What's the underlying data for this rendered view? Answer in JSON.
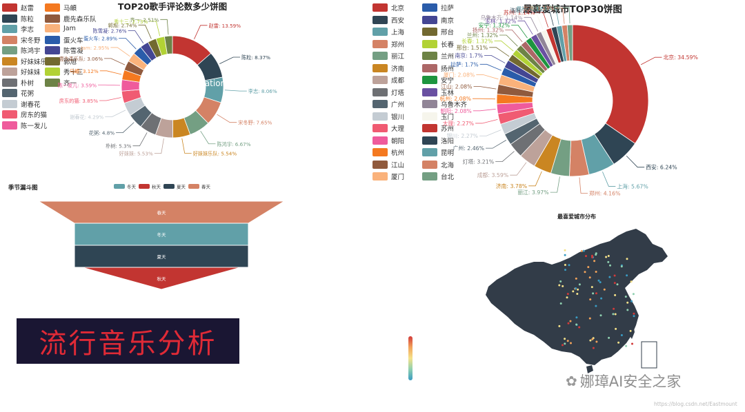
{
  "singer_pie": {
    "title": "TOP20歌手评论数多少饼图",
    "type": "pie",
    "slices": [
      {
        "name": "赵雷",
        "percent": 13.59,
        "color": "#c23531"
      },
      {
        "name": "陈粒",
        "percent": 8.37,
        "color": "#2f4554"
      },
      {
        "name": "李志",
        "percent": 8.06,
        "color": "#61a0a8"
      },
      {
        "name": "宋冬野",
        "percent": 7.65,
        "color": "#d48265"
      },
      {
        "name": "陈鸿宇",
        "percent": 6.67,
        "color": "#749f83"
      },
      {
        "name": "好妹妹乐队",
        "percent": 5.54,
        "color": "#ca8622"
      },
      {
        "name": "好妹妹",
        "percent": 5.53,
        "color": "#bda29a"
      },
      {
        "name": "朴树",
        "percent": 5.3,
        "color": "#6e7074"
      },
      {
        "name": "花粥",
        "percent": 4.8,
        "color": "#546570"
      },
      {
        "name": "谢春花",
        "percent": 4.29,
        "color": "#c4ccd3"
      },
      {
        "name": "房东的猫",
        "percent": 3.85,
        "color": "#f05b72"
      },
      {
        "name": "陈一发儿",
        "percent": 3.59,
        "color": "#ef5b9c"
      },
      {
        "name": "马頔",
        "percent": 3.12,
        "color": "#f47920"
      },
      {
        "name": "鹿先森乐队",
        "percent": 3.06,
        "color": "#905a3d"
      },
      {
        "name": "Jam",
        "percent": 2.95,
        "color": "#fab27b"
      },
      {
        "name": "蛋火车",
        "percent": 2.89,
        "color": "#2a5caa"
      },
      {
        "name": "陈雪凝",
        "percent": 2.76,
        "color": "#444693"
      },
      {
        "name": "郭旭",
        "percent": 2.74,
        "color": "#726930"
      },
      {
        "name": "秀十三",
        "percent": 2.73,
        "color": "#b2d235"
      },
      {
        "name": "齐一",
        "percent": 2.51,
        "color": "#6d8346"
      }
    ],
    "center_text": "ation"
  },
  "city_pie": {
    "title": "最喜爱城市TOP30饼图",
    "type": "pie",
    "slices": [
      {
        "name": "北京",
        "percent": 34.59,
        "color": "#c23531"
      },
      {
        "name": "西安",
        "percent": 6.24,
        "color": "#2f4554"
      },
      {
        "name": "上海",
        "percent": 5.67,
        "color": "#61a0a8"
      },
      {
        "name": "郑州",
        "percent": 4.16,
        "color": "#d48265"
      },
      {
        "name": "丽江",
        "percent": 3.97,
        "color": "#749f83"
      },
      {
        "name": "济南",
        "percent": 3.78,
        "color": "#ca8622"
      },
      {
        "name": "成都",
        "percent": 3.59,
        "color": "#bda29a"
      },
      {
        "name": "灯塔",
        "percent": 3.21,
        "color": "#6e7074"
      },
      {
        "name": "广州",
        "percent": 2.46,
        "color": "#546570"
      },
      {
        "name": "银川",
        "percent": 2.27,
        "color": "#c4ccd3"
      },
      {
        "name": "大理",
        "percent": 2.27,
        "color": "#f05b72"
      },
      {
        "name": "朝阳",
        "percent": 2.08,
        "color": "#ef5b9c"
      },
      {
        "name": "杭州",
        "percent": 2.08,
        "color": "#f47920"
      },
      {
        "name": "江山",
        "percent": 2.08,
        "color": "#905a3d"
      },
      {
        "name": "厦门",
        "percent": 2.08,
        "color": "#fab27b"
      },
      {
        "name": "拉萨",
        "percent": 1.7,
        "color": "#2a5caa"
      },
      {
        "name": "南京",
        "percent": 1.7,
        "color": "#444693"
      },
      {
        "name": "邢台",
        "percent": 1.51,
        "color": "#726930"
      },
      {
        "name": "长春",
        "percent": 1.32,
        "color": "#b2d235"
      },
      {
        "name": "兰州",
        "percent": 1.32,
        "color": "#6d8346"
      },
      {
        "name": "扬州",
        "percent": 1.32,
        "color": "#ac6767"
      },
      {
        "name": "安宁",
        "percent": 1.32,
        "color": "#1d953f"
      },
      {
        "name": "玉林",
        "percent": 1.32,
        "color": "#6950a1"
      },
      {
        "name": "乌鲁木齐",
        "percent": 1.14,
        "color": "#918597"
      },
      {
        "name": "玉门",
        "percent": 1.14,
        "color": "#f6f5ec"
      },
      {
        "name": "苏州",
        "percent": 1.14,
        "color": "#c23531"
      },
      {
        "name": "洛阳",
        "percent": 1.14,
        "color": "#2f4554"
      },
      {
        "name": "昆明",
        "percent": 1.14,
        "color": "#61a0a8"
      },
      {
        "name": "北海",
        "percent": 1.13,
        "color": "#d48265"
      },
      {
        "name": "台北",
        "percent": 1.13,
        "color": "#749f83"
      }
    ]
  },
  "funnel": {
    "title": "季节漏斗图",
    "type": "funnel",
    "legend": [
      {
        "name": "冬天",
        "color": "#61a0a8"
      },
      {
        "name": "秋天",
        "color": "#c23531"
      },
      {
        "name": "夏天",
        "color": "#2f4554"
      },
      {
        "name": "春天",
        "color": "#d48265"
      }
    ],
    "stages": [
      {
        "name": "春天",
        "color": "#d48265"
      },
      {
        "name": "冬天",
        "color": "#61a0a8"
      },
      {
        "name": "夏天",
        "color": "#2f4554"
      },
      {
        "name": "秋天",
        "color": "#c23531"
      }
    ]
  },
  "banner": {
    "text": "流行音乐分析",
    "bg_color": "#1a1633",
    "text_color": "#e02a36"
  },
  "map": {
    "title": "最喜爱城市分布",
    "land_color": "#323c48"
  },
  "watermark": {
    "brand": "娜璋AI安全之家",
    "url": "https://blog.csdn.net/Eastmount"
  }
}
